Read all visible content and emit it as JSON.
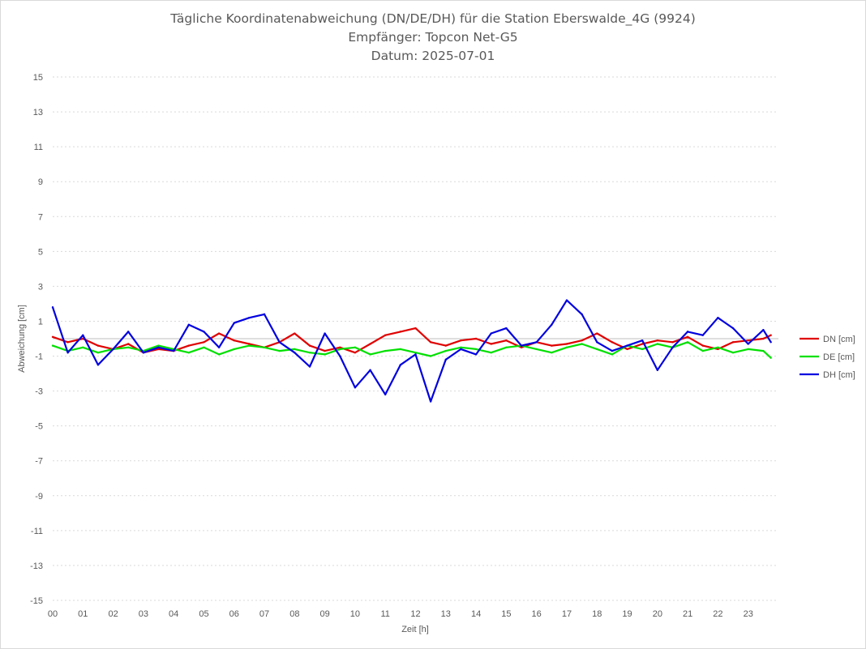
{
  "chart_data": {
    "type": "line",
    "title_lines": [
      "Tägliche Koordinatenabweichung (DN/DE/DH) für die Station Eberswalde_4G (9924)",
      "Empfänger: Topcon Net-G5",
      "Datum: 2025-07-01"
    ],
    "xlabel": "Zeit [h]",
    "ylabel": "Abweichung [cm]",
    "xlim": [
      0,
      24
    ],
    "ylim": [
      -15,
      15
    ],
    "x_ticks": [
      "00",
      "01",
      "02",
      "03",
      "04",
      "05",
      "06",
      "07",
      "08",
      "09",
      "10",
      "11",
      "12",
      "13",
      "14",
      "15",
      "16",
      "17",
      "18",
      "19",
      "20",
      "21",
      "22",
      "23"
    ],
    "y_ticks": [
      15,
      13,
      11,
      9,
      7,
      5,
      3,
      1,
      -1,
      -3,
      -5,
      -7,
      -9,
      -11,
      -13,
      -15
    ],
    "y_tick_labels": [
      "15",
      "13",
      "11",
      "9",
      "7",
      "5",
      "3",
      "1",
      "-1",
      "-3",
      "-5",
      "-7",
      "-9",
      "-11",
      "-13",
      "-15"
    ],
    "grid": true,
    "legend_position": "right",
    "x": [
      0,
      0.5,
      1,
      1.5,
      2,
      2.5,
      3,
      3.5,
      4,
      4.5,
      5,
      5.5,
      6,
      6.5,
      7,
      7.5,
      8,
      8.5,
      9,
      9.5,
      10,
      10.5,
      11,
      11.5,
      12,
      12.5,
      13,
      13.5,
      14,
      14.5,
      15,
      15.5,
      16,
      16.5,
      17,
      17.5,
      18,
      18.5,
      19,
      19.5,
      20,
      20.5,
      21,
      21.5,
      22,
      22.5,
      23,
      23.5,
      23.75
    ],
    "series": [
      {
        "name": "DN [cm]",
        "color": "#e00000",
        "values": [
          0.1,
          -0.2,
          0.0,
          -0.4,
          -0.6,
          -0.3,
          -0.8,
          -0.6,
          -0.7,
          -0.4,
          -0.2,
          0.3,
          -0.1,
          -0.3,
          -0.5,
          -0.2,
          0.3,
          -0.4,
          -0.7,
          -0.5,
          -0.8,
          -0.3,
          0.2,
          0.4,
          0.6,
          -0.2,
          -0.4,
          -0.1,
          0.0,
          -0.3,
          -0.1,
          -0.5,
          -0.2,
          -0.4,
          -0.3,
          -0.1,
          0.3,
          -0.2,
          -0.6,
          -0.3,
          -0.1,
          -0.2,
          0.1,
          -0.4,
          -0.6,
          -0.2,
          -0.1,
          0.0,
          0.2
        ]
      },
      {
        "name": "DE [cm]",
        "color": "#00e000",
        "values": [
          -0.4,
          -0.7,
          -0.5,
          -0.8,
          -0.6,
          -0.5,
          -0.7,
          -0.4,
          -0.6,
          -0.8,
          -0.5,
          -0.9,
          -0.6,
          -0.4,
          -0.5,
          -0.7,
          -0.6,
          -0.8,
          -0.9,
          -0.6,
          -0.5,
          -0.9,
          -0.7,
          -0.6,
          -0.8,
          -1.0,
          -0.7,
          -0.5,
          -0.6,
          -0.8,
          -0.5,
          -0.4,
          -0.6,
          -0.8,
          -0.5,
          -0.3,
          -0.6,
          -0.9,
          -0.4,
          -0.6,
          -0.3,
          -0.5,
          -0.2,
          -0.7,
          -0.5,
          -0.8,
          -0.6,
          -0.7,
          -1.1
        ]
      },
      {
        "name": "DH [cm]",
        "color": "#0000e0",
        "values": [
          1.8,
          -0.8,
          0.2,
          -1.5,
          -0.6,
          0.4,
          -0.8,
          -0.5,
          -0.7,
          0.8,
          0.4,
          -0.5,
          0.9,
          1.2,
          1.4,
          -0.2,
          -0.8,
          -1.6,
          0.3,
          -1.0,
          -2.8,
          -1.8,
          -3.2,
          -1.5,
          -0.9,
          -3.6,
          -1.2,
          -0.6,
          -0.9,
          0.3,
          0.6,
          -0.4,
          -0.2,
          0.8,
          2.2,
          1.4,
          -0.2,
          -0.7,
          -0.4,
          -0.1,
          -1.8,
          -0.5,
          0.4,
          0.2,
          1.2,
          0.6,
          -0.3,
          0.5,
          -0.2
        ]
      }
    ]
  }
}
